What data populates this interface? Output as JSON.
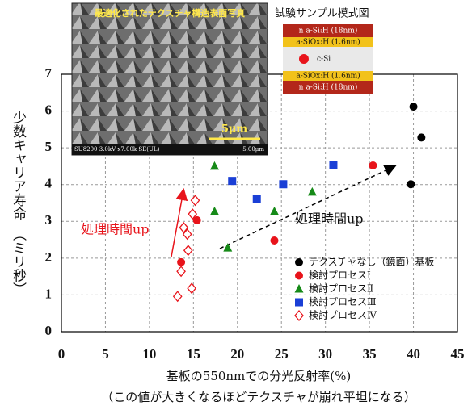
{
  "chart_data": {
    "type": "scatter",
    "x_label": "基板の550nmでの分光反射率(%)",
    "x_note": "（この値が大きくなるほどテクスチャが崩れ平坦になる）",
    "y_label": "少数キャリア寿命　（ミリ秒）",
    "xlim": [
      0,
      45
    ],
    "xticks": [
      0,
      5,
      10,
      15,
      20,
      25,
      30,
      35,
      40,
      45
    ],
    "ylim": [
      0,
      7
    ],
    "yticks": [
      0,
      1,
      2,
      3,
      4,
      5,
      6,
      7
    ],
    "grid": true,
    "series": [
      {
        "name": "テクスチャなし（鏡面）基板",
        "color": "#000000",
        "marker": "circle",
        "x": [
          40.0,
          40.9,
          39.7
        ],
        "values": [
          6.12,
          5.28,
          4.01
        ]
      },
      {
        "name": "検討プロセスⅠ",
        "color": "#e8141b",
        "marker": "circle",
        "x": [
          13.6,
          15.4,
          24.2,
          35.4
        ],
        "values": [
          1.89,
          3.03,
          2.48,
          4.52
        ]
      },
      {
        "name": "検討プロセスⅡ",
        "color": "#168a18",
        "marker": "triangle",
        "x": [
          17.4,
          17.4,
          18.9,
          24.2,
          28.5
        ],
        "values": [
          4.5,
          3.27,
          2.28,
          3.27,
          3.8
        ]
      },
      {
        "name": "検討プロセスⅢ",
        "color": "#1a3fd6",
        "marker": "square",
        "x": [
          19.4,
          22.2,
          25.2,
          30.9
        ],
        "values": [
          4.1,
          3.62,
          4.01,
          4.54
        ]
      },
      {
        "name": "検討プロセスⅣ",
        "color": "#e8141b",
        "marker": "diamond",
        "x": [
          15.2,
          14.9,
          13.9,
          14.3,
          14.4,
          13.6,
          14.8,
          13.2
        ],
        "values": [
          3.57,
          3.2,
          2.83,
          2.65,
          2.21,
          1.64,
          1.18,
          0.96
        ]
      }
    ],
    "annotations": [
      "処理時間up",
      "処理時間up"
    ],
    "photo": {
      "title": "最適化されたテクスチャ構造表面写真",
      "scale": "5μm",
      "info": "SU8200 3.0kV x7.00k SE(UL)",
      "scale_small": "5.00μm"
    },
    "diagram": {
      "title": "試験サンプル模式図",
      "layers": [
        "n a-Si:H (18nm)",
        "a-SiOx:H (1.6nm)",
        "c-Si",
        "a-SiOx:H (1.6nm)",
        "n a-Si:H (18nm)"
      ]
    }
  }
}
